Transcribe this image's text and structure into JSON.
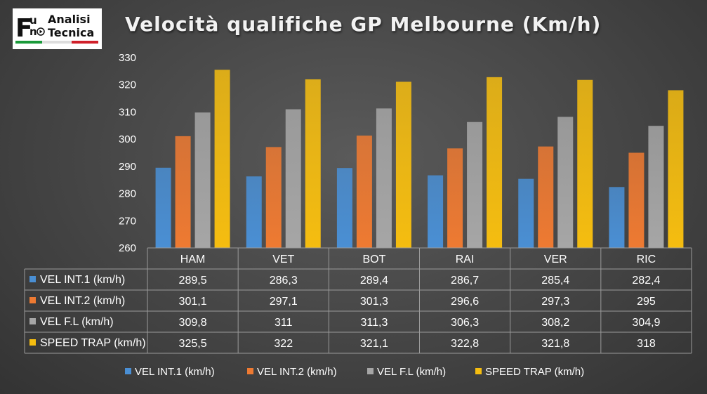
{
  "logo": {
    "line1": "Analisi",
    "line2": "Tecnica",
    "letter_f": "F",
    "letter_u": "u",
    "letter_n": "n"
  },
  "chart_data": {
    "type": "bar",
    "title": "Velocità qualifiche GP Melbourne (Km/h)",
    "categories": [
      "HAM",
      "VET",
      "BOT",
      "RAI",
      "VER",
      "RIC"
    ],
    "series": [
      {
        "name": "VEL INT.1 (km/h)",
        "values": [
          289.5,
          286.3,
          289.4,
          286.7,
          285.4,
          282.4
        ],
        "display": [
          "289,5",
          "286,3",
          "289,4",
          "286,7",
          "285,4",
          "282,4"
        ],
        "color": "#4a8fd4"
      },
      {
        "name": "VEL INT.2 (km/h)",
        "values": [
          301.1,
          297.1,
          301.3,
          296.6,
          297.3,
          295
        ],
        "display": [
          "301,1",
          "297,1",
          "301,3",
          "296,6",
          "297,3",
          "295"
        ],
        "color": "#ee7a32"
      },
      {
        "name": "VEL F.L (km/h)",
        "values": [
          309.8,
          311,
          311.3,
          306.3,
          308.2,
          304.9
        ],
        "display": [
          "309,8",
          "311",
          "311,3",
          "306,3",
          "308,2",
          "304,9"
        ],
        "color": "#a6a6a6"
      },
      {
        "name": "SPEED TRAP (km/h)",
        "values": [
          325.5,
          322,
          321.1,
          322.8,
          321.8,
          318
        ],
        "display": [
          "325,5",
          "322",
          "321,1",
          "322,8",
          "321,8",
          "318"
        ],
        "color": "#f5bd10"
      }
    ],
    "ylim": [
      260,
      330
    ],
    "yticks": [
      260,
      270,
      280,
      290,
      300,
      310,
      320,
      330
    ],
    "grid": false,
    "legend": "bottom",
    "data_table": true
  }
}
